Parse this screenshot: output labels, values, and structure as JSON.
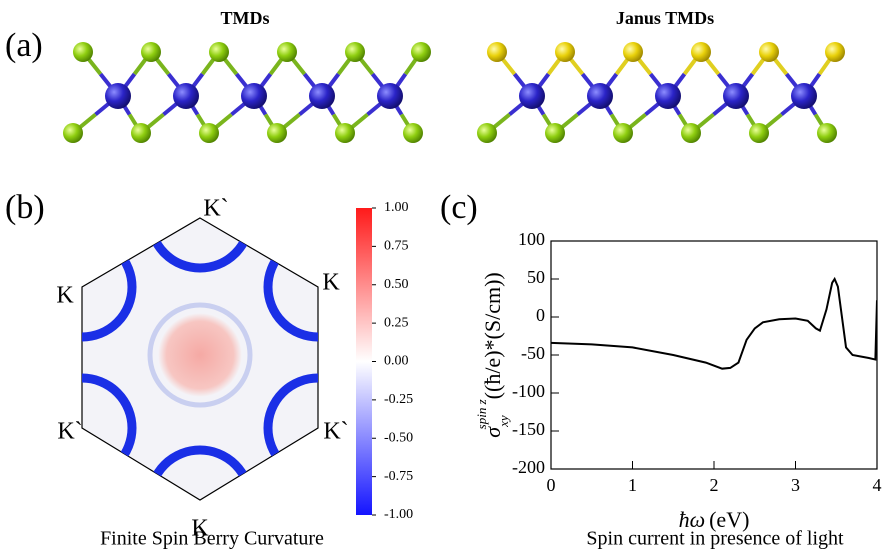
{
  "panel_a": {
    "label": "(a)",
    "left_title": "TMDs",
    "right_title": "Janus TMDs"
  },
  "panel_b": {
    "label": "(b)",
    "points": {
      "top": "K`",
      "upper_left": "K",
      "upper_right": "K",
      "lower_left": "K`",
      "lower_right": "K`",
      "bottom": "K"
    },
    "colorbar": {
      "lim": [
        -1,
        1
      ],
      "ticks": [
        {
          "value": 1,
          "label": "1.00"
        },
        {
          "value": 0.75,
          "label": "0.75"
        },
        {
          "value": 0.5,
          "label": "0.50"
        },
        {
          "value": 0.25,
          "label": "0.25"
        },
        {
          "value": 0,
          "label": "0.00"
        },
        {
          "value": -0.25,
          "label": "-0.25"
        },
        {
          "value": -0.5,
          "label": "-0.50"
        },
        {
          "value": -0.75,
          "label": "-0.75"
        },
        {
          "value": -1,
          "label": "-1.00"
        }
      ]
    },
    "caption": "Finite Spin Berry Curvature"
  },
  "chart_data": {
    "type": "line",
    "label": "(c)",
    "x": [
      0,
      0.5,
      1.0,
      1.5,
      1.9,
      2.1,
      2.2,
      2.3,
      2.4,
      2.5,
      2.6,
      2.8,
      3.0,
      3.15,
      3.25,
      3.3,
      3.38,
      3.45,
      3.48,
      3.52,
      3.57,
      3.62,
      3.7,
      3.8,
      3.9,
      3.98,
      4.0
    ],
    "series": [
      {
        "color": "#000000",
        "values": [
          -34,
          -36,
          -40,
          -50,
          -60,
          -68,
          -67,
          -60,
          -30,
          -15,
          -7,
          -3,
          -2,
          -5,
          -15,
          -18,
          10,
          45,
          50,
          40,
          0,
          -40,
          -50,
          -52,
          -54,
          -56,
          22
        ]
      }
    ],
    "xlim": [
      0,
      4
    ],
    "xticks": [
      0,
      1,
      2,
      3,
      4
    ],
    "ylim": [
      -200,
      100
    ],
    "yticks": [
      -200,
      -150,
      -100,
      -50,
      0,
      50,
      100
    ],
    "ylabel": {
      "symbol": "σ",
      "sub": "xy",
      "sup": "spin z",
      "units": "((ħ/e)*(S/cm))"
    },
    "xlabel": {
      "symbol": "ħω",
      "units": "(eV)"
    },
    "caption": "Spin current in presence of light"
  }
}
